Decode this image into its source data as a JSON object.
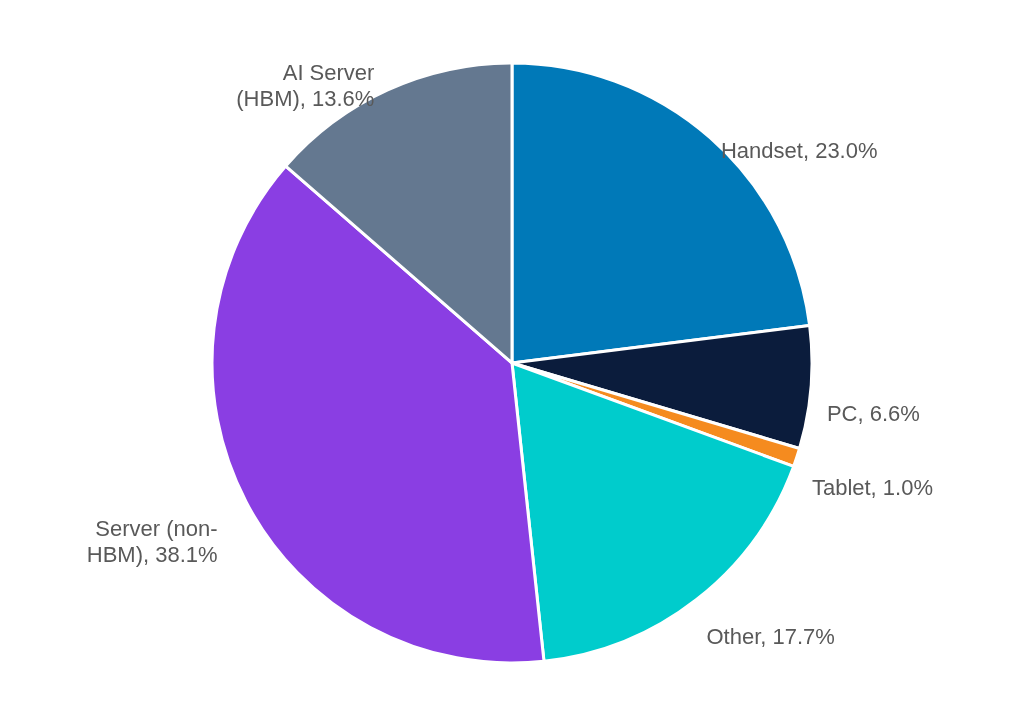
{
  "chart_data": {
    "type": "pie",
    "categories": [
      "Handset",
      "PC",
      "Tablet",
      "Other",
      "Server (non-HBM)",
      "AI Server (HBM)"
    ],
    "values": [
      23.0,
      6.6,
      1.0,
      17.7,
      38.1,
      13.6
    ],
    "colors": [
      "#0079b8",
      "#0b1c3c",
      "#f58b1f",
      "#00cccc",
      "#8a3ee3",
      "#647890"
    ],
    "value_labels": [
      "23.0%",
      "6.6%",
      "1.0%",
      "17.7%",
      "38.1%",
      "13.6%"
    ]
  }
}
